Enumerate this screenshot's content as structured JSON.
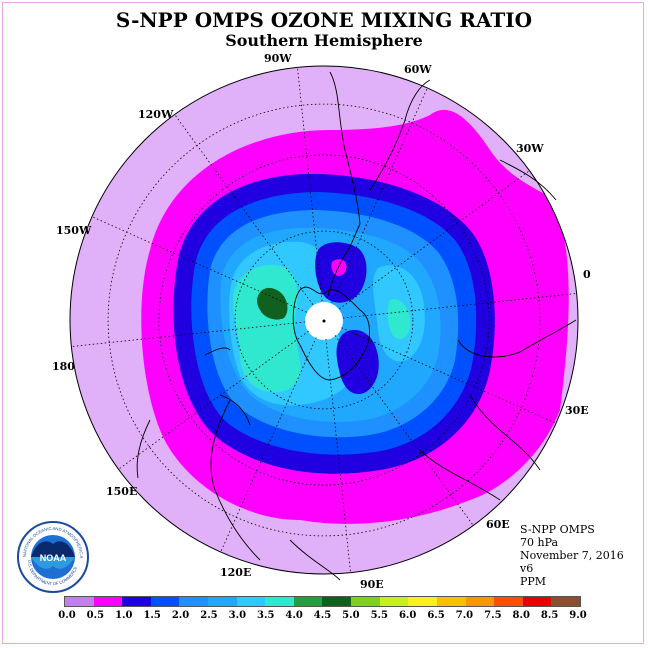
{
  "title": "S-NPP OMPS OZONE MIXING RATIO",
  "subtitle": "Southern Hemisphere",
  "longitude_labels": [
    "90W",
    "60W",
    "30W",
    "0",
    "30E",
    "60E",
    "90E",
    "120E",
    "150E",
    "180",
    "150W",
    "120W"
  ],
  "info": [
    "S-NPP OMPS",
    "70 hPa",
    "November 7, 2016",
    "v6",
    "PPM"
  ],
  "colorbar": {
    "ticks": [
      "0.0",
      "0.5",
      "1.0",
      "1.5",
      "2.0",
      "2.5",
      "3.0",
      "3.5",
      "4.0",
      "4.5",
      "5.0",
      "5.5",
      "6.0",
      "6.5",
      "7.0",
      "7.5",
      "8.0",
      "8.5",
      "9.0"
    ],
    "colors": [
      "#c080f0",
      "#e0b0f8",
      "#ff00ff",
      "#2000e0",
      "#0050ff",
      "#1e90ff",
      "#20a8ff",
      "#30c8ff",
      "#30e8d0",
      "#20a040",
      "#106020",
      "#80d020",
      "#c8f020",
      "#f8f020",
      "#f8c000",
      "#f89800",
      "#f85000",
      "#e80000",
      "#885030"
    ]
  },
  "map_colors": {
    "ring_outer": "#e0b0f8",
    "ring_magenta": "#ff00ff",
    "ring_navy": "#2000e0",
    "blue_dark": "#0050ff",
    "blue_mid": "#1e90ff",
    "blue_light": "#20a8ff",
    "cyan": "#30c8ff",
    "aqua": "#30e8d0",
    "green": "#106020"
  },
  "logo": {
    "text": "NOAA",
    "arc_text": "NATIONAL OCEANIC AND ATMOSPHERIC ADMINISTRATION",
    "arc_text_bottom": "U.S. DEPARTMENT OF COMMERCE"
  }
}
